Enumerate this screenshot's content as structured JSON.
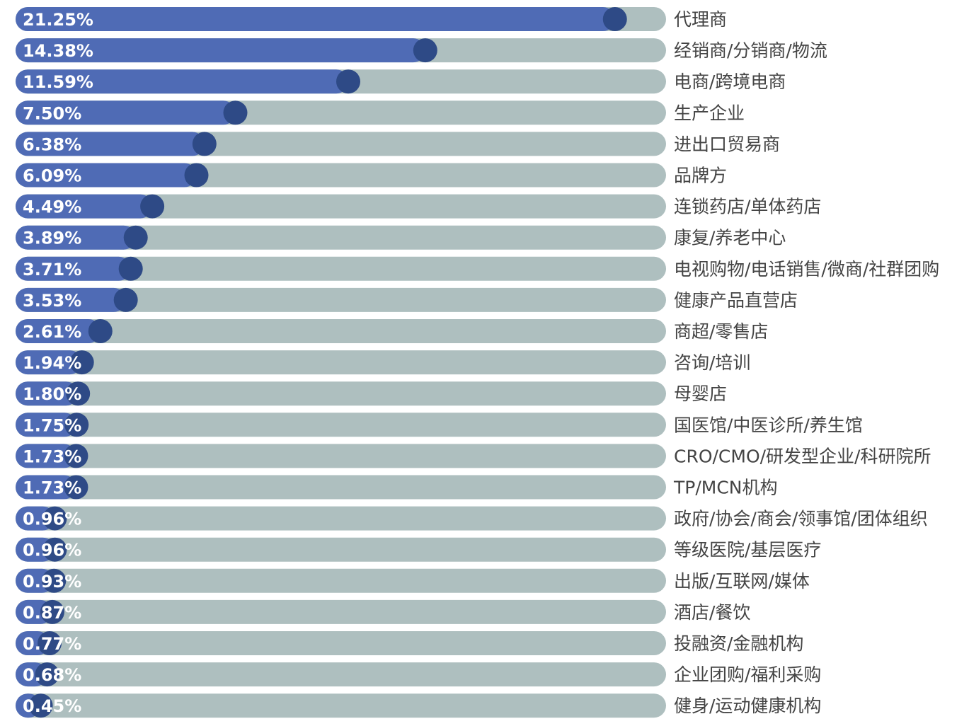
{
  "chart_data": {
    "type": "bar",
    "orientation": "horizontal",
    "categories": [
      "代理商",
      "经销商/分销商/物流",
      "电商/跨境电商",
      "生产企业",
      "进出口贸易商",
      "品牌方",
      "连锁药店/单体药店",
      "康复/养老中心",
      "电视购物/电话销售/微商/社群团购",
      "健康产品直营店",
      "商超/零售店",
      "咨询/培训",
      "母婴店",
      "国医馆/中医诊所/养生馆",
      "CRO/CMO/研发型企业/科研院所",
      "TP/MCN机构",
      "政府/协会/商会/领事馆/团体组织",
      "等级医院/基层医疗",
      "出版/互联网/媒体",
      "酒店/餐饮",
      "投融资/金融机构",
      "企业团购/福利采购",
      "健身/运动健康机构"
    ],
    "values": [
      21.25,
      14.38,
      11.59,
      7.5,
      6.38,
      6.09,
      4.49,
      3.89,
      3.71,
      3.53,
      2.61,
      1.94,
      1.8,
      1.75,
      1.73,
      1.73,
      0.96,
      0.96,
      0.93,
      0.87,
      0.77,
      0.68,
      0.45
    ],
    "value_labels": [
      "21.25%",
      "14.38%",
      "11.59%",
      "7.50%",
      "6.38%",
      "6.09%",
      "4.49%",
      "3.89%",
      "3.71%",
      "3.53%",
      "2.61%",
      "1.94%",
      "1.80%",
      "1.75%",
      "1.73%",
      "1.73%",
      "0.96%",
      "0.96%",
      "0.93%",
      "0.87%",
      "0.77%",
      "0.68%",
      "0.45%"
    ],
    "unit": "%",
    "title": "",
    "xlabel": "",
    "ylabel": "",
    "grid": false,
    "legend": "none",
    "colors": {
      "bar_fill": "#4f6bb5",
      "track": "#aebfbf",
      "end_cap": "#2e4a86",
      "value_text": "#ffffff",
      "category_text": "#444444"
    }
  }
}
